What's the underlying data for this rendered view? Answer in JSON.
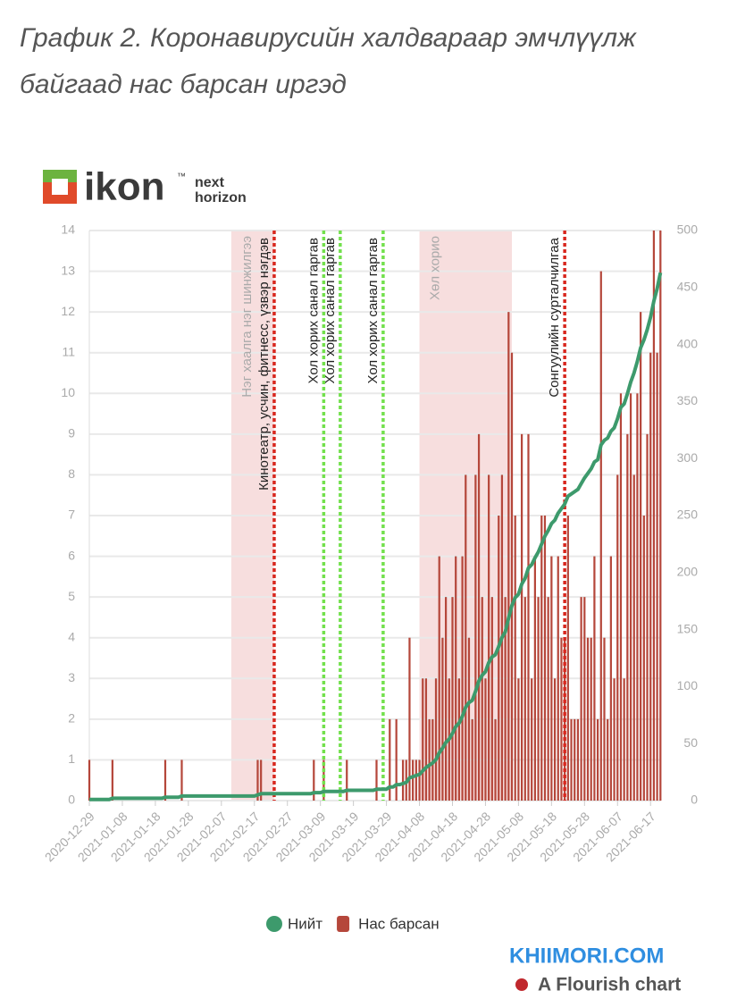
{
  "chart_data": {
    "type": "bar_line",
    "title": [
      "График 2. Коронавирусийн халдвараар эмчлүүлж",
      "байгаад нас барсан иргэд"
    ],
    "logo": {
      "name": "ikon",
      "tm": "™",
      "tag": [
        "next",
        "horizon"
      ]
    },
    "x": [
      "2020-12-29",
      "2020-12-30",
      "2020-12-31",
      "2021-01-01",
      "2021-01-02",
      "2021-01-03",
      "2021-01-04",
      "2021-01-05",
      "2021-01-06",
      "2021-01-07",
      "2021-01-08",
      "2021-01-09",
      "2021-01-10",
      "2021-01-11",
      "2021-01-12",
      "2021-01-13",
      "2021-01-14",
      "2021-01-15",
      "2021-01-16",
      "2021-01-17",
      "2021-01-18",
      "2021-01-19",
      "2021-01-20",
      "2021-01-21",
      "2021-01-22",
      "2021-01-23",
      "2021-01-24",
      "2021-01-25",
      "2021-01-26",
      "2021-01-27",
      "2021-01-28",
      "2021-01-29",
      "2021-01-30",
      "2021-01-31",
      "2021-02-01",
      "2021-02-02",
      "2021-02-03",
      "2021-02-04",
      "2021-02-05",
      "2021-02-06",
      "2021-02-07",
      "2021-02-08",
      "2021-02-09",
      "2021-02-10",
      "2021-02-11",
      "2021-02-12",
      "2021-02-13",
      "2021-02-14",
      "2021-02-15",
      "2021-02-16",
      "2021-02-17",
      "2021-02-18",
      "2021-02-19",
      "2021-02-20",
      "2021-02-21",
      "2021-02-22",
      "2021-02-23",
      "2021-02-24",
      "2021-02-25",
      "2021-02-26",
      "2021-02-27",
      "2021-02-28",
      "2021-03-01",
      "2021-03-02",
      "2021-03-03",
      "2021-03-04",
      "2021-03-05",
      "2021-03-06",
      "2021-03-07",
      "2021-03-08",
      "2021-03-09",
      "2021-03-10",
      "2021-03-11",
      "2021-03-12",
      "2021-03-13",
      "2021-03-14",
      "2021-03-15",
      "2021-03-16",
      "2021-03-17",
      "2021-03-18",
      "2021-03-19",
      "2021-03-20",
      "2021-03-21",
      "2021-03-22",
      "2021-03-23",
      "2021-03-24",
      "2021-03-25",
      "2021-03-26",
      "2021-03-27",
      "2021-03-28",
      "2021-03-29",
      "2021-03-30",
      "2021-03-31",
      "2021-04-01",
      "2021-04-02",
      "2021-04-03",
      "2021-04-04",
      "2021-04-05",
      "2021-04-06",
      "2021-04-07",
      "2021-04-08",
      "2021-04-09",
      "2021-04-10",
      "2021-04-11",
      "2021-04-12",
      "2021-04-13",
      "2021-04-14",
      "2021-04-15",
      "2021-04-16",
      "2021-04-17",
      "2021-04-18",
      "2021-04-19",
      "2021-04-20",
      "2021-04-21",
      "2021-04-22",
      "2021-04-23",
      "2021-04-24",
      "2021-04-25",
      "2021-04-26",
      "2021-04-27",
      "2021-04-28",
      "2021-04-29",
      "2021-04-30",
      "2021-05-01",
      "2021-05-02",
      "2021-05-03",
      "2021-05-04",
      "2021-05-05",
      "2021-05-06",
      "2021-05-07",
      "2021-05-08",
      "2021-05-09",
      "2021-05-10",
      "2021-05-11",
      "2021-05-12",
      "2021-05-13",
      "2021-05-14",
      "2021-05-15",
      "2021-05-16",
      "2021-05-17",
      "2021-05-18",
      "2021-05-19",
      "2021-05-20",
      "2021-05-21",
      "2021-05-22",
      "2021-05-23",
      "2021-05-24",
      "2021-05-25",
      "2021-05-26",
      "2021-05-27",
      "2021-05-28",
      "2021-05-29",
      "2021-05-30",
      "2021-05-31",
      "2021-06-01",
      "2021-06-02",
      "2021-06-03",
      "2021-06-04",
      "2021-06-05",
      "2021-06-06",
      "2021-06-07",
      "2021-06-08",
      "2021-06-09",
      "2021-06-10",
      "2021-06-11",
      "2021-06-12",
      "2021-06-13",
      "2021-06-14",
      "2021-06-15",
      "2021-06-16",
      "2021-06-17",
      "2021-06-18",
      "2021-06-19",
      "2021-06-20"
    ],
    "series": [
      {
        "name": "Нийт",
        "color": "#3d9a6c",
        "kind": "line",
        "axis": "y2",
        "values": [
          1,
          1,
          1,
          1,
          1,
          1,
          1,
          2,
          2,
          2,
          2,
          2,
          2,
          2,
          2,
          2,
          2,
          2,
          2,
          2,
          2,
          2,
          2,
          3,
          3,
          3,
          3,
          3,
          4,
          4,
          4,
          4,
          4,
          4,
          4,
          4,
          4,
          4,
          4,
          4,
          4,
          4,
          4,
          4,
          4,
          4,
          4,
          4,
          4,
          4,
          4,
          5,
          6,
          6,
          6,
          6,
          6,
          6,
          6,
          6,
          6,
          6,
          6,
          6,
          6,
          6,
          6,
          6,
          7,
          7,
          7,
          8,
          8,
          8,
          8,
          8,
          8,
          8,
          9,
          9,
          9,
          9,
          9,
          9,
          9,
          9,
          9,
          10,
          10,
          10,
          10,
          12,
          12,
          14,
          14,
          15,
          16,
          20,
          21,
          22,
          23,
          26,
          29,
          31,
          33,
          36,
          42,
          46,
          51,
          54,
          59,
          65,
          68,
          74,
          82,
          86,
          88,
          96,
          105,
          110,
          113,
          121,
          126,
          128,
          135,
          143,
          148,
          160,
          171,
          178,
          181,
          190,
          195,
          204,
          207,
          213,
          218,
          225,
          232,
          237,
          243,
          246,
          252,
          256,
          260,
          267,
          269,
          271,
          273,
          278,
          283,
          287,
          291,
          297,
          299,
          312,
          316,
          318,
          324,
          327,
          335,
          345,
          348,
          357,
          367,
          375,
          385,
          397,
          404,
          413,
          424,
          438,
          449,
          463
        ]
      },
      {
        "name": "Нас барсан",
        "color": "#b5473b",
        "kind": "bar",
        "axis": "y",
        "values": [
          1,
          0,
          0,
          0,
          0,
          0,
          0,
          1,
          0,
          0,
          0,
          0,
          0,
          0,
          0,
          0,
          0,
          0,
          0,
          0,
          0,
          0,
          0,
          1,
          0,
          0,
          0,
          0,
          1,
          0,
          0,
          0,
          0,
          0,
          0,
          0,
          0,
          0,
          0,
          0,
          0,
          0,
          0,
          0,
          0,
          0,
          0,
          0,
          0,
          0,
          0,
          1,
          1,
          0,
          0,
          0,
          0,
          0,
          0,
          0,
          0,
          0,
          0,
          0,
          0,
          0,
          0,
          0,
          1,
          0,
          0,
          1,
          0,
          0,
          0,
          0,
          0,
          0,
          1,
          0,
          0,
          0,
          0,
          0,
          0,
          0,
          0,
          1,
          0,
          0,
          0,
          2,
          0,
          2,
          0,
          1,
          1,
          4,
          1,
          1,
          1,
          3,
          3,
          2,
          2,
          3,
          6,
          4,
          5,
          3,
          5,
          6,
          3,
          6,
          8,
          4,
          2,
          8,
          9,
          5,
          3,
          8,
          5,
          2,
          7,
          8,
          5,
          12,
          11,
          7,
          3,
          9,
          5,
          9,
          3,
          6,
          5,
          7,
          7,
          5,
          6,
          3,
          6,
          4,
          4,
          7,
          2,
          2,
          2,
          5,
          5,
          4,
          4,
          6,
          2,
          13,
          4,
          2,
          6,
          3,
          8,
          10,
          3,
          9,
          10,
          8,
          10,
          12,
          7,
          9,
          11,
          14,
          11,
          14
        ]
      }
    ],
    "xlim": [
      "2020-12-29",
      "2021-06-21"
    ],
    "xticks": [
      "2020-12-29",
      "2021-01-08",
      "2021-01-18",
      "2021-01-28",
      "2021-02-07",
      "2021-02-17",
      "2021-02-27",
      "2021-03-09",
      "2021-03-19",
      "2021-03-29",
      "2021-04-08",
      "2021-04-18",
      "2021-04-28",
      "2021-05-08",
      "2021-05-18",
      "2021-05-28",
      "2021-06-07",
      "2021-06-17"
    ],
    "ylim": [
      0,
      14
    ],
    "yticks": [
      0,
      1,
      2,
      3,
      4,
      5,
      6,
      7,
      8,
      9,
      10,
      11,
      12,
      13,
      14
    ],
    "y2lim": [
      0,
      500
    ],
    "y2ticks": [
      0,
      50,
      100,
      150,
      200,
      250,
      300,
      350,
      400,
      450,
      500
    ],
    "grid": true,
    "bands": [
      {
        "x": [
          "2021-02-10",
          "2021-02-23"
        ],
        "label": "Нэг хаалга нэг шинжилгээ"
      },
      {
        "x": [
          "2021-04-08",
          "2021-05-06"
        ],
        "label": "Хөл хорио"
      }
    ],
    "lines": [
      {
        "x": "2021-02-23",
        "color": "#d8271e",
        "label": "Кинотеатр, усчин, фитнесс, үзвэр нэгдэв"
      },
      {
        "x": "2021-03-10",
        "color": "#72e04c",
        "label": "Хол хорих санал гаргав"
      },
      {
        "x": "2021-03-15",
        "color": "#72e04c",
        "label": "Хол хорих санал гаргав"
      },
      {
        "x": "2021-03-28",
        "color": "#72e04c",
        "label": "Хол хорих санал гаргав"
      },
      {
        "x": "2021-05-22",
        "color": "#d8271e",
        "label": "Сонгуулийн сурталчилгаа"
      }
    ],
    "watermark": "KHIIMORI.COM",
    "credit": "A Flourish chart"
  }
}
